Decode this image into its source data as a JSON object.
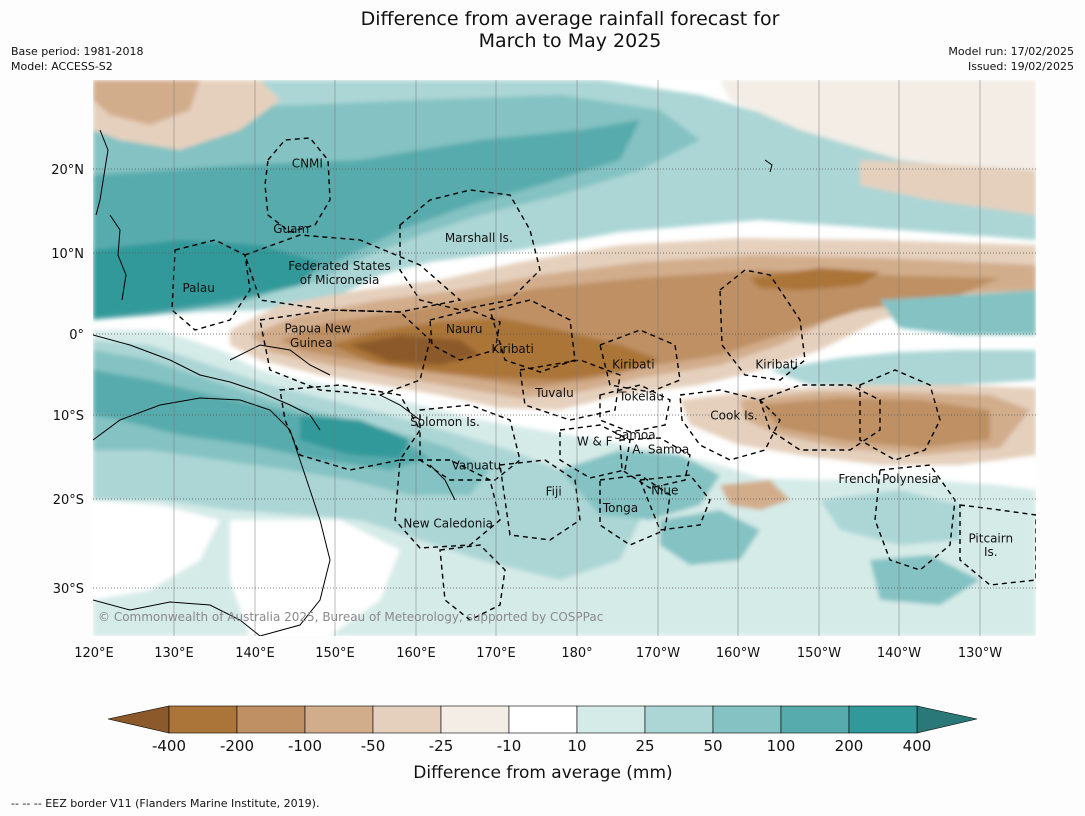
{
  "title_line1": "Difference from average rainfall forecast for",
  "title_line2": "March to May 2025",
  "meta_left": [
    "Base period: 1981-2018",
    "Model: ACCESS-S2"
  ],
  "meta_right": [
    "Model run: 17/02/2025",
    "Issued: 19/02/2025"
  ],
  "lon_labels": [
    "120°E",
    "130°E",
    "140°E",
    "150°E",
    "160°E",
    "170°E",
    "180°",
    "170°W",
    "160°W",
    "150°W",
    "140°W",
    "130°W"
  ],
  "lat_labels": [
    "20°N",
    "10°N",
    "0°",
    "10°S",
    "20°S",
    "30°S"
  ],
  "places": [
    {
      "name": "CNMI",
      "lon": 146.5,
      "lat": 20.3
    },
    {
      "name": "Guam",
      "lon": 144.5,
      "lat": 12.3
    },
    {
      "name": "Marshall Is.",
      "lon": 167.8,
      "lat": 11.2
    },
    {
      "name": "Federated States",
      "lon": 150.5,
      "lat": 7.8
    },
    {
      "name": "of Micronesia",
      "lon": 150.5,
      "lat": 6.1
    },
    {
      "name": "Palau",
      "lon": 133.0,
      "lat": 5.1
    },
    {
      "name": "Papua New",
      "lon": 147.8,
      "lat": 0.2
    },
    {
      "name": "Guinea",
      "lon": 147.0,
      "lat": -1.6
    },
    {
      "name": "Nauru",
      "lon": 166.0,
      "lat": 0.1
    },
    {
      "name": "Kiribati",
      "lon": 172.0,
      "lat": -2.3
    },
    {
      "name": "Kiribati",
      "lon": -173.0,
      "lat": -4.2
    },
    {
      "name": "Kiribati",
      "lon": -155.2,
      "lat": -4.2
    },
    {
      "name": "Tuvalu",
      "lon": 177.2,
      "lat": -7.7
    },
    {
      "name": "Tokelau",
      "lon": -172.0,
      "lat": -8.1
    },
    {
      "name": "Cook Is.",
      "lon": -160.5,
      "lat": -10.4
    },
    {
      "name": "Solomon Is.",
      "lon": 163.6,
      "lat": -11.2
    },
    {
      "name": "Samoa",
      "lon": -172.8,
      "lat": -12.8
    },
    {
      "name": "W & F",
      "lon": -177.8,
      "lat": -13.6
    },
    {
      "name": "A. Samoa",
      "lon": -169.6,
      "lat": -14.6
    },
    {
      "name": "Vanuatu",
      "lon": 167.5,
      "lat": -16.5
    },
    {
      "name": "Fiji",
      "lon": 177.1,
      "lat": -19.7
    },
    {
      "name": "Niue",
      "lon": -169.1,
      "lat": -19.6
    },
    {
      "name": "French Polynesia",
      "lon": -141.3,
      "lat": -18.2
    },
    {
      "name": "Tonga",
      "lon": -174.6,
      "lat": -21.7
    },
    {
      "name": "New Caledonia",
      "lon": 164.0,
      "lat": -23.6
    },
    {
      "name": "Pitcairn",
      "lon": -128.6,
      "lat": -25.4
    },
    {
      "name": "Is.",
      "lon": -128.6,
      "lat": -27.1
    }
  ],
  "copyright": "© Commonwealth of Australia 2025, Bureau of Meteorology, supported by COSPPac",
  "colorbar": {
    "labels": [
      "-400",
      "-200",
      "-100",
      "-50",
      "-25",
      "-10",
      "10",
      "25",
      "50",
      "100",
      "200",
      "400"
    ],
    "colors": [
      "#ab7439",
      "#be9064",
      "#d2ad8c",
      "#e5d0bd",
      "#f3ede6",
      "#ffffff",
      "#d5ebe8",
      "#acd6d5",
      "#84c2c3",
      "#58abad",
      "#32999a"
    ],
    "extend_low_color": "#8c5a2a",
    "extend_high_color": "#2a7878",
    "title": "Difference from average (mm)"
  },
  "footer": "--  --  -- EEZ border V11 (Flanders Marine Institute, 2019)."
}
